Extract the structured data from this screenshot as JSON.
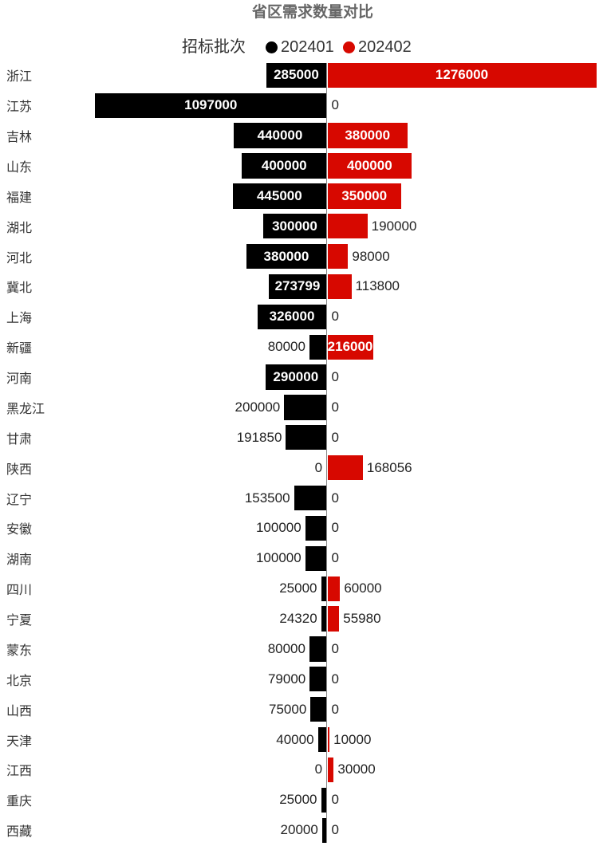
{
  "title": "省区需求数量对比",
  "legend": {
    "title": "招标批次",
    "items": [
      {
        "label": "202401",
        "color": "#000000"
      },
      {
        "label": "202402",
        "color": "#d70800"
      }
    ]
  },
  "colors": {
    "series_202401": "#000000",
    "series_202402": "#d70800",
    "axis_line": "#888888",
    "title_text": "#666666",
    "category_text": "#333333",
    "value_text_outside": "#222222",
    "value_text_inside": "#ffffff"
  },
  "chart_data": {
    "type": "bar",
    "orientation": "diverging-horizontal",
    "title": "省区需求数量对比",
    "legend_title": "招标批次",
    "legend_position": "top",
    "grid": false,
    "value_axis_max": 1276000,
    "value_label_rule": "label inside bar (white bold) when it fits, otherwise outside next to bar end",
    "categories": [
      "浙江",
      "江苏",
      "吉林",
      "山东",
      "福建",
      "湖北",
      "河北",
      "冀北",
      "上海",
      "新疆",
      "河南",
      "黑龙江",
      "甘肃",
      "陕西",
      "辽宁",
      "安徽",
      "湖南",
      "四川",
      "宁夏",
      "蒙东",
      "北京",
      "山西",
      "天津",
      "江西",
      "重庆",
      "西藏"
    ],
    "series": [
      {
        "name": "202401",
        "color": "#000000",
        "direction": "left",
        "values": [
          285000,
          1097000,
          440000,
          400000,
          445000,
          300000,
          380000,
          273799,
          326000,
          80000,
          290000,
          200000,
          191850,
          0,
          153500,
          100000,
          100000,
          25000,
          24320,
          80000,
          79000,
          75000,
          40000,
          0,
          25000,
          20000
        ]
      },
      {
        "name": "202402",
        "color": "#d70800",
        "direction": "right",
        "values": [
          1276000,
          0,
          380000,
          400000,
          350000,
          190000,
          98000,
          113800,
          0,
          216000,
          0,
          0,
          0,
          168056,
          0,
          0,
          0,
          60000,
          55980,
          0,
          0,
          0,
          10000,
          30000,
          0,
          0
        ]
      }
    ]
  }
}
